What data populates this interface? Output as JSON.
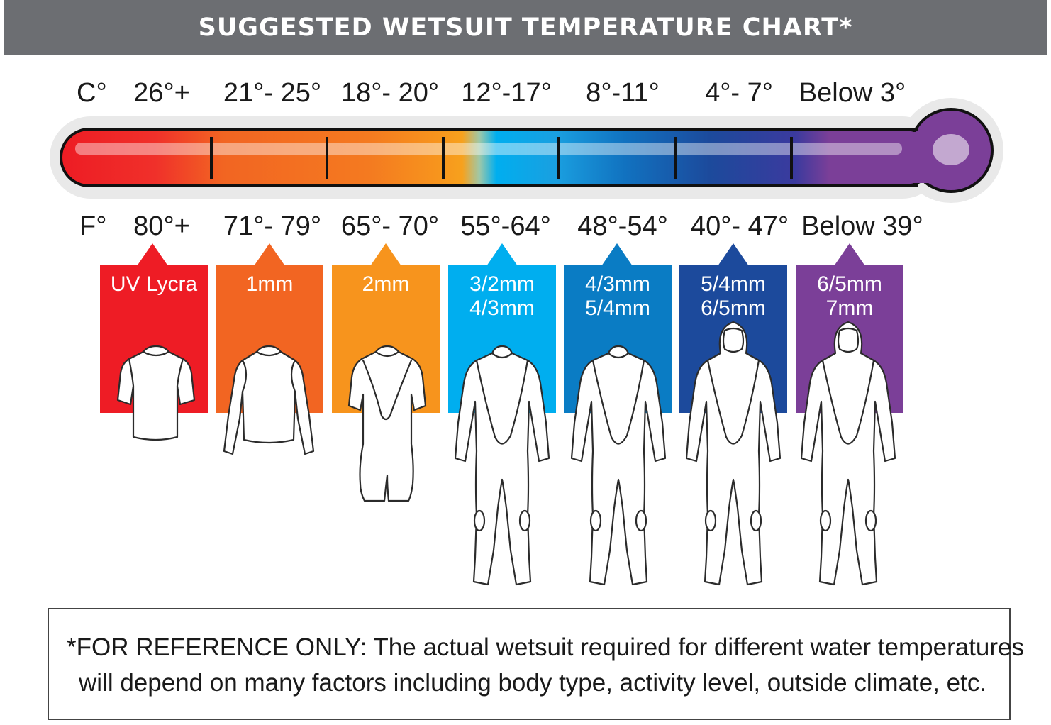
{
  "title": "SUGGESTED WETSUIT TEMPERATURE CHART*",
  "celsius_label": "C°",
  "fahrenheit_label": "F°",
  "ranges": [
    {
      "c": "26°+",
      "f": "80°+",
      "suit_lines": [
        "UV Lycra"
      ],
      "color": "#ee1c25",
      "figure": "rash-vest-short"
    },
    {
      "c": "21°- 25°",
      "f": "71°- 79°",
      "suit_lines": [
        "1mm"
      ],
      "color": "#f26522",
      "figure": "long-sleeve-top"
    },
    {
      "c": "18°- 20°",
      "f": "65°- 70°",
      "suit_lines": [
        "2mm"
      ],
      "color": "#f7941d",
      "figure": "shorty"
    },
    {
      "c": "12°-17°",
      "f": "55°-64°",
      "suit_lines": [
        "3/2mm",
        "4/3mm"
      ],
      "color": "#00aeef",
      "figure": "fullsuit"
    },
    {
      "c": "8°-11°",
      "f": "48°-54°",
      "suit_lines": [
        "4/3mm",
        "5/4mm"
      ],
      "color": "#0a7cc4",
      "figure": "fullsuit"
    },
    {
      "c": "4°- 7°",
      "f": "40°- 47°",
      "suit_lines": [
        "5/4mm",
        "6/5mm"
      ],
      "color": "#1c4a9c",
      "figure": "hooded-fullsuit"
    },
    {
      "c": "Below 3°",
      "f": "Below 39°",
      "suit_lines": [
        "6/5mm",
        "7mm"
      ],
      "color": "#7b3f98",
      "figure": "hooded-fullsuit"
    }
  ],
  "note": {
    "line1": "*FOR REFERENCE ONLY: The actual wetsuit required for different water temperatures",
    "line2": "will depend on many factors including body type, activity level, outside climate, etc."
  }
}
